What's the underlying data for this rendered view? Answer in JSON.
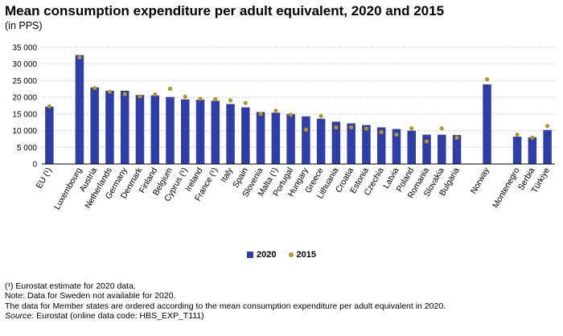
{
  "chart_data": {
    "type": "bar",
    "title": "Mean consumption expenditure per adult equivalent, 2020 and 2015",
    "subtitle": "(in PPS)",
    "ylim": [
      0,
      35000
    ],
    "yticks": [
      "0",
      "5 000",
      "10 000",
      "15 000",
      "20 000",
      "25 000",
      "30 000",
      "35 000"
    ],
    "ytick_values": [
      0,
      5000,
      10000,
      15000,
      20000,
      25000,
      30000,
      35000
    ],
    "categories": [
      "EU (¹)",
      "",
      "Luxembourg",
      "Austria",
      "Netherlands",
      "Germany",
      "Denmark",
      "Finland",
      "Belgium",
      "Cyprus (¹)",
      "Ireland",
      "France (¹)",
      "Italy",
      "Spain",
      "Slovenia",
      "Malta (¹)",
      "Portugal",
      "Hungary",
      "Greece",
      "Lithuania",
      "Croatia",
      "Estonia",
      "Czechia",
      "Latvia",
      "Poland",
      "Romania",
      "Slovakia",
      "Bulgaria",
      "",
      "Norway",
      "",
      "Montenegro",
      "Serbia",
      "Türkiye"
    ],
    "series": [
      {
        "name": "2020",
        "color": "#2e3ea4",
        "values": [
          17200,
          null,
          32700,
          23000,
          22000,
          22000,
          20700,
          20600,
          20100,
          19400,
          19300,
          19000,
          18000,
          17000,
          15600,
          15400,
          15000,
          14300,
          13600,
          12700,
          12200,
          11700,
          11000,
          10500,
          10000,
          8800,
          8800,
          8700,
          null,
          23900,
          null,
          8200,
          8000,
          10200
        ]
      },
      {
        "name": "2015",
        "color": "#b59526",
        "values": [
          17300,
          null,
          32000,
          22800,
          21700,
          21000,
          20300,
          20900,
          22600,
          20200,
          19600,
          19500,
          19100,
          18300,
          15000,
          16000,
          14800,
          10300,
          14400,
          11000,
          11000,
          10600,
          9600,
          8800,
          10700,
          6800,
          10700,
          7900,
          null,
          25400,
          null,
          8800,
          7900,
          11400
        ]
      }
    ]
  },
  "legend": {
    "items": [
      "2020",
      "2015"
    ]
  },
  "notes": {
    "footnote": "(¹) Eurostat estimate for 2020 data.",
    "note1": "Note: Data for Sweden not available for 2020.",
    "note2": "The data for Member states are ordered according to the mean consumption expenditure per adult equivalent in 2020.",
    "source_label": "Source:",
    "source_text": "Eurostat (online data code: HBS_EXP_T111)"
  }
}
